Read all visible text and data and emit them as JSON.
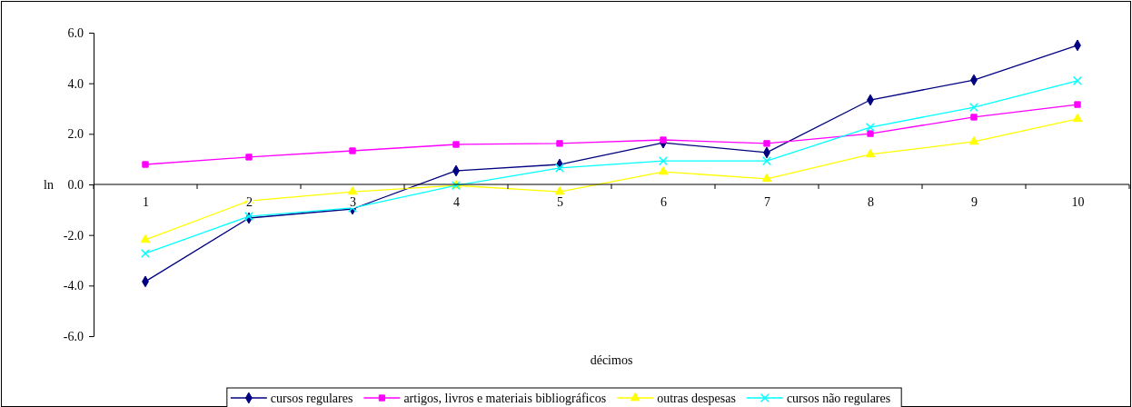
{
  "chart_data": {
    "type": "line",
    "xlabel": "décimos",
    "ylabel": "ln",
    "categories": [
      "1",
      "2",
      "3",
      "4",
      "5",
      "6",
      "7",
      "8",
      "9",
      "10"
    ],
    "ylim": [
      -6,
      6
    ],
    "yticks": [
      {
        "value": -6,
        "label": "-6.0"
      },
      {
        "value": -4,
        "label": "-4.0"
      },
      {
        "value": -2,
        "label": "-2.0"
      },
      {
        "value": 0,
        "label": "0.0"
      },
      {
        "value": 2,
        "label": "2.0"
      },
      {
        "value": 4,
        "label": "4.0"
      },
      {
        "value": 6,
        "label": "6.0"
      }
    ],
    "grid": false,
    "legend": "bottom",
    "line_style": "solid",
    "series": [
      {
        "name": "cursos regulares",
        "color": "#000080",
        "marker": "diamond",
        "values": [
          -3.84,
          -1.33,
          -0.97,
          0.54,
          0.79,
          1.65,
          1.26,
          3.34,
          4.13,
          5.5
        ]
      },
      {
        "name": "artigos, livros e materiais bibliográficos",
        "color": "#ff00ff",
        "marker": "square",
        "values": [
          0.79,
          1.08,
          1.33,
          1.58,
          1.62,
          1.76,
          1.62,
          2.01,
          2.66,
          3.16
        ]
      },
      {
        "name": "outras despesas",
        "color": "#ffff00",
        "marker": "triangle",
        "values": [
          -2.19,
          -0.65,
          -0.29,
          -0.04,
          -0.29,
          0.5,
          0.22,
          1.19,
          1.69,
          2.59
        ]
      },
      {
        "name": "cursos não regulares",
        "color": "#00ffff",
        "marker": "cross",
        "values": [
          -2.73,
          -1.26,
          -0.93,
          -0.04,
          0.65,
          0.93,
          0.93,
          2.26,
          3.05,
          4.1
        ]
      }
    ]
  }
}
